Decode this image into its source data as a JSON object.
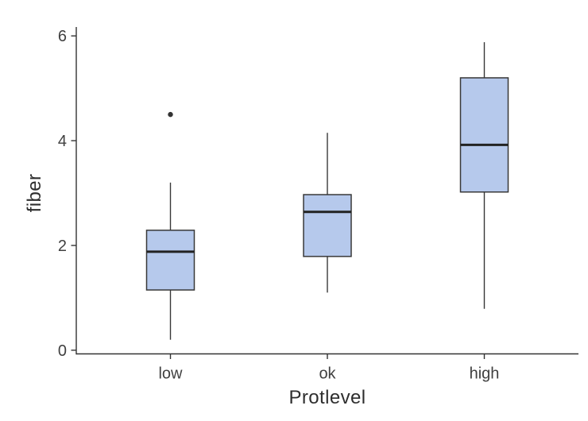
{
  "figure": {
    "background": "#ffffff"
  },
  "chart_data": {
    "type": "boxplot",
    "title": "",
    "xlabel": "Protlevel",
    "ylabel": "fiber",
    "categories": [
      "low",
      "ok",
      "high"
    ],
    "yticks": [
      0,
      2,
      4,
      6
    ],
    "ylim": [
      -0.07,
      6.17
    ],
    "grid": false,
    "legend": false,
    "boxes": [
      {
        "category": "low",
        "whisker_low": 0.2,
        "q1": 1.15,
        "median": 1.88,
        "q3": 2.29,
        "whisker_high": 3.2,
        "outliers": [
          4.5
        ]
      },
      {
        "category": "ok",
        "whisker_low": 1.1,
        "q1": 1.79,
        "median": 2.64,
        "q3": 2.97,
        "whisker_high": 4.15,
        "outliers": []
      },
      {
        "category": "high",
        "whisker_low": 0.79,
        "q1": 3.02,
        "median": 3.92,
        "q3": 5.2,
        "whisker_high": 5.88,
        "outliers": []
      }
    ],
    "colors": {
      "box_fill": "#b6c9ec",
      "box_stroke": "#383838",
      "median": "#222222",
      "whisker": "#383838",
      "axis": "#333333",
      "tick_label": "#404040",
      "axis_title": "#2e2e2e",
      "outlier": "#333333"
    }
  }
}
